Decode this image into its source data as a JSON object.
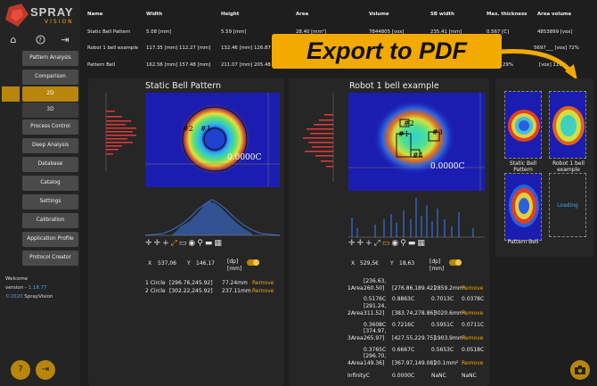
{
  "app": {
    "logo_text": "SPRAY",
    "logo_sub": "VISION"
  },
  "sidebar": {
    "items": [
      {
        "label": "Pattern Analysis"
      },
      {
        "label": "Comparison"
      },
      {
        "label": "2D"
      },
      {
        "label": "3D"
      },
      {
        "label": "Process Control"
      },
      {
        "label": "Deep Analysis"
      },
      {
        "label": "Database"
      },
      {
        "label": "Catalog"
      },
      {
        "label": "Settings"
      },
      {
        "label": "Calibration"
      },
      {
        "label": "Application Profile"
      },
      {
        "label": "Protocol Creator"
      }
    ],
    "welcome": "Welcome",
    "version_label": "version - ",
    "version": "1.18.77",
    "copyright_year": "©2020",
    "copyright_name": " SprayVision"
  },
  "table": {
    "headers": [
      "Name",
      "Width",
      "Height",
      "Area",
      "Volume",
      "SB width",
      "Max. thickness",
      "Area volume"
    ],
    "rows": [
      [
        "Static Bell Pattern",
        "5.08 [mm]",
        "5.59 [mm]",
        "28.40 [mm²]",
        "7844805 [vox]",
        "235.41 [mm]",
        "0.567 [C]",
        "4853899 [vox]"
      ],
      [
        "Robot 1 bell example",
        "117.35 [mm] 112.27 [mm]",
        "132.46 [mm] 126.87 [mm]",
        "",
        "",
        "",
        "",
        "5697___ [vox] 72%"
      ],
      [
        "Pattern Bell",
        "162.56 [mm] 157.48 [mm]",
        "211.07 [mm] 205.48 [mm]",
        "",
        "",
        "",
        "29%",
        "[vox] 111%"
      ]
    ]
  },
  "banner": {
    "text": "Export to PDF"
  },
  "panel1": {
    "title": "Static Bell Pattern",
    "value_label": "0.0000C",
    "markers": [
      "#2",
      "#1"
    ],
    "x_label": "X",
    "x_value": "537,06",
    "y_label": "Y",
    "y_value": "146,17",
    "unit_label": "[dp] [mm]",
    "measures": [
      {
        "name": "1 Circle",
        "coords": "[296.76,245.92]",
        "value": "77.24mm",
        "action": "Remove"
      },
      {
        "name": "2 Circle",
        "coords": "[302.22,245.92]",
        "value": "237.11mm",
        "action": "Remove"
      }
    ]
  },
  "panel2": {
    "title": "Robot 1 bell example",
    "value_label": "0.0000C",
    "markers": [
      "#1",
      "#2",
      "#3",
      "#4"
    ],
    "x_label": "X",
    "x_value": "529,5€",
    "y_label": "Y",
    "y_value": "18,63",
    "unit_label": "[dp] [mm]",
    "areas": [
      {
        "name": "1Area",
        "box": "[236.63, 260.50]",
        "center": "[276.86,189.42]",
        "area": "2859.2mm²",
        "action": "Remove",
        "r1": "0.5176C",
        "r2": "0.8863C",
        "r3": "0.7013C",
        "r4": "0.0378C"
      },
      {
        "name": "2Area",
        "box": "[291.24, 311.52]",
        "center": "[383.74,278.86]",
        "area": "3020.6mm²",
        "action": "Remove",
        "r1": "0.3608C",
        "r2": "0.7216C",
        "r3": "0.5951C",
        "r4": "0.0711C"
      },
      {
        "name": "3Area",
        "box": "[374.97, 265.97]",
        "center": "[427.55,229.75]",
        "area": "1903.9mm²",
        "action": "Remove",
        "r1": "0.3765C",
        "r2": "0.6667C",
        "r3": "0.5653C",
        "r4": "0.0518C"
      },
      {
        "name": "4Area",
        "box": "[296.70, 149.36]",
        "center": "[367.97,149.08]",
        "area": "20.1mm²",
        "action": "Remove",
        "r1": "InfinityC",
        "r2": "0.0000C",
        "r3": "NaNC",
        "r4": "NaNC"
      }
    ]
  },
  "thumbnails": [
    {
      "name": "Static Bell Pattern"
    },
    {
      "name": "Robot 1 bell example"
    },
    {
      "name": "Pattern Bell"
    },
    {
      "name": "Loading"
    }
  ],
  "colors": {
    "accent": "#f0a500",
    "banner": "#f2a900",
    "link": "#4aa3df"
  }
}
